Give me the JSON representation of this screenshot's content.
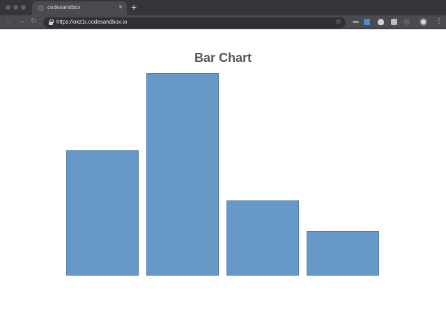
{
  "browser": {
    "tab_title": "codesandbox",
    "new_tab_label": "+",
    "tab_close_label": "×",
    "url": "https://okz1r.codesandbox.io",
    "icons": {
      "back": "back-arrow-icon",
      "forward": "forward-arrow-icon",
      "reload": "reload-icon",
      "lock": "lock-icon",
      "bookmark": "star-icon",
      "menu": "more-vert-icon"
    }
  },
  "chart_data": {
    "type": "bar",
    "title": "Bar Chart",
    "categories": [
      "",
      "",
      "",
      ""
    ],
    "values": [
      62,
      100,
      37,
      22
    ],
    "ylim": [
      0,
      100
    ],
    "xlabel": "",
    "ylabel": "",
    "grid": false,
    "color": "#6799c8"
  }
}
